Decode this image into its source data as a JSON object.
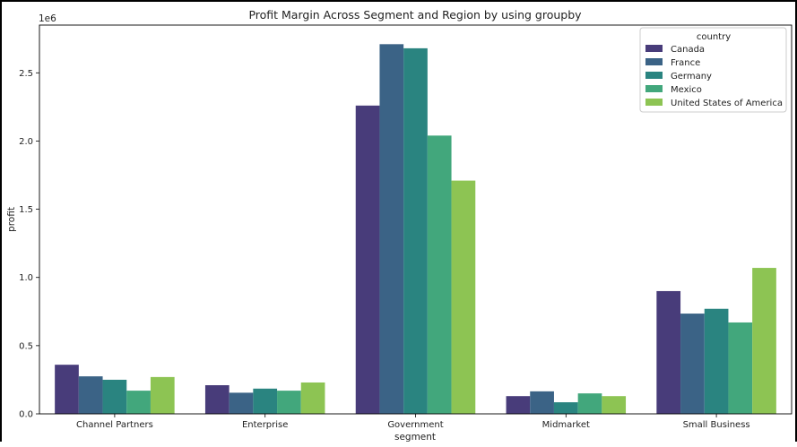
{
  "chart_data": {
    "type": "bar",
    "title": "Profit Margin Across Segment and Region by using groupby",
    "xlabel": "segment",
    "ylabel": "profit",
    "y_scale_label": "1e6",
    "ylim": [
      0,
      2.85
    ],
    "yticks": [
      "0.0",
      "0.5",
      "1.0",
      "1.5",
      "2.0",
      "2.5"
    ],
    "ytick_values": [
      0,
      0.5,
      1.0,
      1.5,
      2.0,
      2.5
    ],
    "categories": [
      "Channel Partners",
      "Enterprise",
      "Government",
      "Midmarket",
      "Small Business"
    ],
    "legend_title": "country",
    "legend_position": "top-right",
    "grid": false,
    "series": [
      {
        "name": "Canada",
        "color": "#483c7a",
        "values": [
          0.36,
          0.21,
          2.26,
          0.13,
          0.9
        ]
      },
      {
        "name": "France",
        "color": "#3b6386",
        "values": [
          0.275,
          0.155,
          2.71,
          0.165,
          0.735
        ]
      },
      {
        "name": "Germany",
        "color": "#2a8480",
        "values": [
          0.25,
          0.185,
          2.68,
          0.085,
          0.77
        ]
      },
      {
        "name": "Mexico",
        "color": "#42a77c",
        "values": [
          0.17,
          0.17,
          2.04,
          0.15,
          0.67
        ]
      },
      {
        "name": "United States of America",
        "color": "#8dc453",
        "values": [
          0.27,
          0.23,
          1.71,
          0.13,
          1.07
        ]
      }
    ]
  }
}
